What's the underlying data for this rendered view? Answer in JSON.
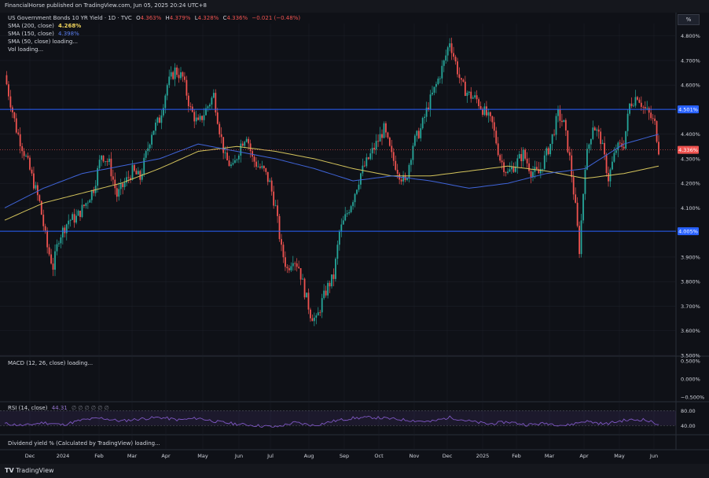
{
  "header": {
    "published": "FinancialHorse published on TradingView.com, Jun 05, 2025 20:24 UTC+8",
    "percent_button": "%"
  },
  "legend": {
    "instrument": "US Government Bonds 10 YR Yield · 1D · TVC",
    "o_label": "O",
    "o_value": "4.363%",
    "h_label": "H",
    "h_value": "4.379%",
    "l_label": "L",
    "l_value": "4.328%",
    "c_label": "C",
    "c_value": "4.336%",
    "change": "−0.021 (−0.48%)",
    "sma200_label": "SMA (200, close)",
    "sma200_value": "4.268%",
    "sma150_label": "SMA (150, close)",
    "sma150_value": "4.398%",
    "sma50_label": "SMA (50, close) loading...",
    "vol_label": "Vol loading..."
  },
  "macd": {
    "label": "MACD (12, 26, close) loading..."
  },
  "rsi": {
    "label": "RSI (14, close)",
    "value": "44.31",
    "empties": "∅ ∅ ∅ ∅ ∅ ∅"
  },
  "dividend": {
    "label": "Dividend yield % (Calculated by TradingView) loading..."
  },
  "footer": {
    "brand": "TradingView"
  },
  "colors": {
    "background": "#0f1117",
    "up": "#26a69a",
    "down": "#ef5350",
    "sma200": "#d4c45c",
    "sma150": "#3f64d8",
    "hline": "#2962ff",
    "rsi": "#7e57c2",
    "grid": "#1d2029"
  },
  "chart_data": {
    "type": "candlestick",
    "title": "US Government Bonds 10 YR Yield · 1D · TVC",
    "y_axis": {
      "unit": "%",
      "ylim": [
        3.5,
        4.85
      ],
      "ticks": [
        "4.800%",
        "4.700%",
        "4.600%",
        "4.400%",
        "4.300%",
        "4.200%",
        "4.100%",
        "3.900%",
        "3.800%",
        "3.700%",
        "3.600%",
        "3.500%"
      ]
    },
    "x_axis": {
      "ticks": [
        "Dec",
        "2024",
        "Feb",
        "Mar",
        "Apr",
        "May",
        "Jun",
        "Jul",
        "Aug",
        "Sep",
        "Oct",
        "Nov",
        "Dec",
        "2025",
        "Feb",
        "Mar",
        "Apr",
        "May",
        "Jun"
      ]
    },
    "price_path": [
      [
        0,
        4.64
      ],
      [
        6,
        4.42
      ],
      [
        12,
        4.28
      ],
      [
        18,
        4.12
      ],
      [
        22,
        3.94
      ],
      [
        25,
        3.86
      ],
      [
        28,
        3.98
      ],
      [
        33,
        4.05
      ],
      [
        37,
        4.06
      ],
      [
        42,
        4.12
      ],
      [
        46,
        4.18
      ],
      [
        50,
        4.32
      ],
      [
        54,
        4.28
      ],
      [
        58,
        4.15
      ],
      [
        62,
        4.2
      ],
      [
        66,
        4.25
      ],
      [
        70,
        4.22
      ],
      [
        76,
        4.41
      ],
      [
        80,
        4.46
      ],
      [
        84,
        4.6
      ],
      [
        88,
        4.66
      ],
      [
        92,
        4.63
      ],
      [
        96,
        4.5
      ],
      [
        100,
        4.44
      ],
      [
        104,
        4.5
      ],
      [
        108,
        4.56
      ],
      [
        111,
        4.42
      ],
      [
        114,
        4.3
      ],
      [
        118,
        4.26
      ],
      [
        122,
        4.36
      ],
      [
        125,
        4.4
      ],
      [
        128,
        4.3
      ],
      [
        131,
        4.27
      ],
      [
        134,
        4.25
      ],
      [
        137,
        4.2
      ],
      [
        140,
        4.1
      ],
      [
        143,
        3.93
      ],
      [
        146,
        3.85
      ],
      [
        149,
        3.9
      ],
      [
        152,
        3.86
      ],
      [
        155,
        3.76
      ],
      [
        158,
        3.67
      ],
      [
        161,
        3.64
      ],
      [
        164,
        3.72
      ],
      [
        167,
        3.78
      ],
      [
        170,
        3.82
      ],
      [
        173,
        4.0
      ],
      [
        176,
        4.06
      ],
      [
        180,
        4.14
      ],
      [
        184,
        4.24
      ],
      [
        188,
        4.3
      ],
      [
        192,
        4.36
      ],
      [
        196,
        4.42
      ],
      [
        200,
        4.31
      ],
      [
        204,
        4.24
      ],
      [
        207,
        4.2
      ],
      [
        211,
        4.36
      ],
      [
        215,
        4.42
      ],
      [
        219,
        4.52
      ],
      [
        223,
        4.6
      ],
      [
        227,
        4.69
      ],
      [
        230,
        4.78
      ],
      [
        232,
        4.72
      ],
      [
        236,
        4.6
      ],
      [
        240,
        4.56
      ],
      [
        244,
        4.54
      ],
      [
        248,
        4.49
      ],
      [
        252,
        4.44
      ],
      [
        256,
        4.3
      ],
      [
        260,
        4.24
      ],
      [
        264,
        4.28
      ],
      [
        268,
        4.32
      ],
      [
        272,
        4.25
      ],
      [
        276,
        4.24
      ],
      [
        279,
        4.3
      ],
      [
        282,
        4.36
      ],
      [
        286,
        4.48
      ],
      [
        289,
        4.44
      ],
      [
        292,
        4.3
      ],
      [
        295,
        4.1
      ],
      [
        297,
        3.93
      ],
      [
        300,
        4.28
      ],
      [
        304,
        4.44
      ],
      [
        308,
        4.38
      ],
      [
        312,
        4.22
      ],
      [
        316,
        4.34
      ],
      [
        320,
        4.36
      ],
      [
        323,
        4.52
      ],
      [
        327,
        4.56
      ],
      [
        330,
        4.51
      ],
      [
        333,
        4.48
      ],
      [
        336,
        4.44
      ],
      [
        338,
        4.34
      ]
    ],
    "sma200": [
      [
        0,
        4.05
      ],
      [
        20,
        4.12
      ],
      [
        40,
        4.16
      ],
      [
        60,
        4.2
      ],
      [
        80,
        4.26
      ],
      [
        100,
        4.33
      ],
      [
        120,
        4.35
      ],
      [
        140,
        4.33
      ],
      [
        160,
        4.3
      ],
      [
        180,
        4.26
      ],
      [
        200,
        4.23
      ],
      [
        220,
        4.23
      ],
      [
        240,
        4.25
      ],
      [
        260,
        4.27
      ],
      [
        280,
        4.25
      ],
      [
        300,
        4.22
      ],
      [
        320,
        4.24
      ],
      [
        338,
        4.27
      ]
    ],
    "sma150": [
      [
        0,
        4.1
      ],
      [
        20,
        4.18
      ],
      [
        40,
        4.24
      ],
      [
        60,
        4.27
      ],
      [
        80,
        4.3
      ],
      [
        100,
        4.36
      ],
      [
        120,
        4.33
      ],
      [
        140,
        4.3
      ],
      [
        160,
        4.26
      ],
      [
        180,
        4.21
      ],
      [
        200,
        4.23
      ],
      [
        220,
        4.21
      ],
      [
        240,
        4.18
      ],
      [
        260,
        4.2
      ],
      [
        280,
        4.24
      ],
      [
        300,
        4.26
      ],
      [
        320,
        4.36
      ],
      [
        338,
        4.4
      ]
    ],
    "hlines": [
      {
        "value": 4.501,
        "label": "4.501%"
      },
      {
        "value": 4.005,
        "label": "4.005%"
      }
    ],
    "last_price": {
      "value": 4.336,
      "label": "4.336%"
    },
    "macd_axis": [
      "0.500%",
      "0.000%",
      "−0.500%"
    ],
    "rsi_axis": [
      "80.00",
      "40.00"
    ],
    "rsi_values": [
      [
        0,
        45
      ],
      [
        10,
        40
      ],
      [
        20,
        48
      ],
      [
        30,
        42
      ],
      [
        40,
        55
      ],
      [
        50,
        60
      ],
      [
        60,
        52
      ],
      [
        70,
        58
      ],
      [
        80,
        62
      ],
      [
        90,
        55
      ],
      [
        100,
        60
      ],
      [
        110,
        50
      ],
      [
        120,
        44
      ],
      [
        130,
        40
      ],
      [
        140,
        36
      ],
      [
        150,
        48
      ],
      [
        160,
        40
      ],
      [
        170,
        52
      ],
      [
        180,
        60
      ],
      [
        190,
        62
      ],
      [
        200,
        58
      ],
      [
        210,
        54
      ],
      [
        220,
        50
      ],
      [
        230,
        62
      ],
      [
        240,
        52
      ],
      [
        250,
        44
      ],
      [
        260,
        50
      ],
      [
        270,
        42
      ],
      [
        280,
        46
      ],
      [
        290,
        40
      ],
      [
        300,
        52
      ],
      [
        310,
        44
      ],
      [
        320,
        54
      ],
      [
        330,
        56
      ],
      [
        338,
        44
      ]
    ]
  }
}
